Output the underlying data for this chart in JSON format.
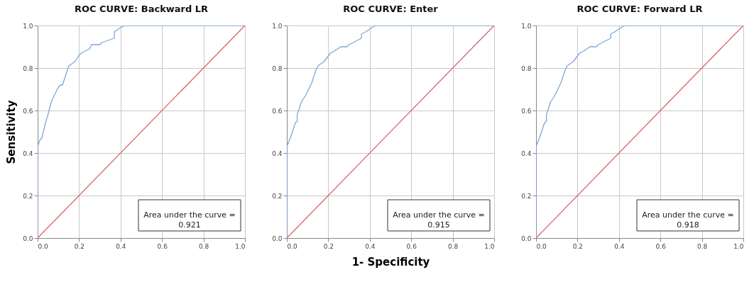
{
  "chart_data": [
    {
      "type": "line",
      "title": "ROC CURVE: Backward LR",
      "ylabel": "Sensitivity",
      "xlim": [
        0,
        1
      ],
      "ylim": [
        0,
        1
      ],
      "xticks": [
        "0.0",
        0.2,
        0.4,
        0.6,
        0.8,
        "1.0"
      ],
      "yticks": [
        "0.0",
        0.2,
        0.4,
        0.6,
        0.8,
        "1.0"
      ],
      "grid": true,
      "marker": "none",
      "line_style": "solid",
      "annotations": [
        "Area under the curve =\n0.921"
      ],
      "series": [
        {
          "color": "#7fa7d8",
          "x": [
            0,
            0,
            0.01,
            0.02,
            0.04,
            0.05,
            0.06,
            0.07,
            0.1,
            0.11,
            0.12,
            0.13,
            0.14,
            0.15,
            0.18,
            0.2,
            0.21,
            0.25,
            0.26,
            0.3,
            0.31,
            0.37,
            0.37,
            0.4,
            0.42,
            1.0
          ],
          "values": [
            0,
            0.43,
            0.46,
            0.47,
            0.55,
            0.58,
            0.62,
            0.65,
            0.71,
            0.72,
            0.72,
            0.75,
            0.78,
            0.81,
            0.83,
            0.86,
            0.87,
            0.89,
            0.91,
            0.91,
            0.92,
            0.94,
            0.97,
            0.99,
            1.0,
            1.0
          ]
        },
        {
          "color": "#d9636e",
          "x": [
            0,
            1
          ],
          "values": [
            0,
            1
          ]
        }
      ]
    },
    {
      "type": "line",
      "title": "ROC CURVE: Enter",
      "xlabel": "1- Specificity",
      "xlim": [
        0,
        1
      ],
      "ylim": [
        0,
        1
      ],
      "xticks": [
        "0.0",
        0.2,
        0.4,
        0.6,
        0.8,
        "1.0"
      ],
      "yticks": [
        "0.0",
        0.2,
        0.4,
        0.6,
        0.8,
        "1.0"
      ],
      "grid": true,
      "marker": "none",
      "line_style": "solid",
      "annotations": [
        "Area under the curve =\n0.915"
      ],
      "series": [
        {
          "color": "#7fa7d8",
          "x": [
            0,
            0,
            0.02,
            0.04,
            0.05,
            0.05,
            0.07,
            0.09,
            0.11,
            0.12,
            0.14,
            0.15,
            0.18,
            0.21,
            0.23,
            0.26,
            0.29,
            0.3,
            0.36,
            0.36,
            0.38,
            0.41,
            0.43,
            0.53,
            0.54,
            1.0
          ],
          "values": [
            0,
            0.43,
            0.48,
            0.54,
            0.55,
            0.58,
            0.64,
            0.67,
            0.71,
            0.73,
            0.79,
            0.81,
            0.83,
            0.87,
            0.88,
            0.9,
            0.9,
            0.91,
            0.94,
            0.96,
            0.97,
            0.99,
            1.0,
            1.0,
            1.0,
            1.0
          ]
        },
        {
          "color": "#d9636e",
          "x": [
            0,
            1
          ],
          "values": [
            0,
            1
          ]
        }
      ]
    },
    {
      "type": "line",
      "title": "ROC CURVE: Forward LR",
      "xlim": [
        0,
        1
      ],
      "ylim": [
        0,
        1
      ],
      "xticks": [
        "0.0",
        0.2,
        0.4,
        0.6,
        0.8,
        "1.0"
      ],
      "yticks": [
        "0.0",
        0.2,
        0.4,
        0.6,
        0.8,
        "1.0"
      ],
      "grid": true,
      "marker": "none",
      "line_style": "solid",
      "annotations": [
        "Area under the curve =\n0.918"
      ],
      "series": [
        {
          "color": "#7fa7d8",
          "x": [
            0,
            0,
            0.02,
            0.04,
            0.05,
            0.05,
            0.07,
            0.09,
            0.11,
            0.12,
            0.14,
            0.15,
            0.18,
            0.21,
            0.23,
            0.26,
            0.29,
            0.3,
            0.36,
            0.36,
            0.38,
            0.41,
            0.43,
            0.53,
            0.54,
            1.0
          ],
          "values": [
            0,
            0.43,
            0.48,
            0.54,
            0.55,
            0.58,
            0.64,
            0.67,
            0.71,
            0.73,
            0.79,
            0.81,
            0.83,
            0.87,
            0.88,
            0.9,
            0.9,
            0.91,
            0.94,
            0.96,
            0.97,
            0.99,
            1.0,
            1.0,
            1.0,
            1.0
          ]
        },
        {
          "color": "#d9636e",
          "x": [
            0,
            1
          ],
          "values": [
            0,
            1
          ]
        }
      ]
    }
  ]
}
